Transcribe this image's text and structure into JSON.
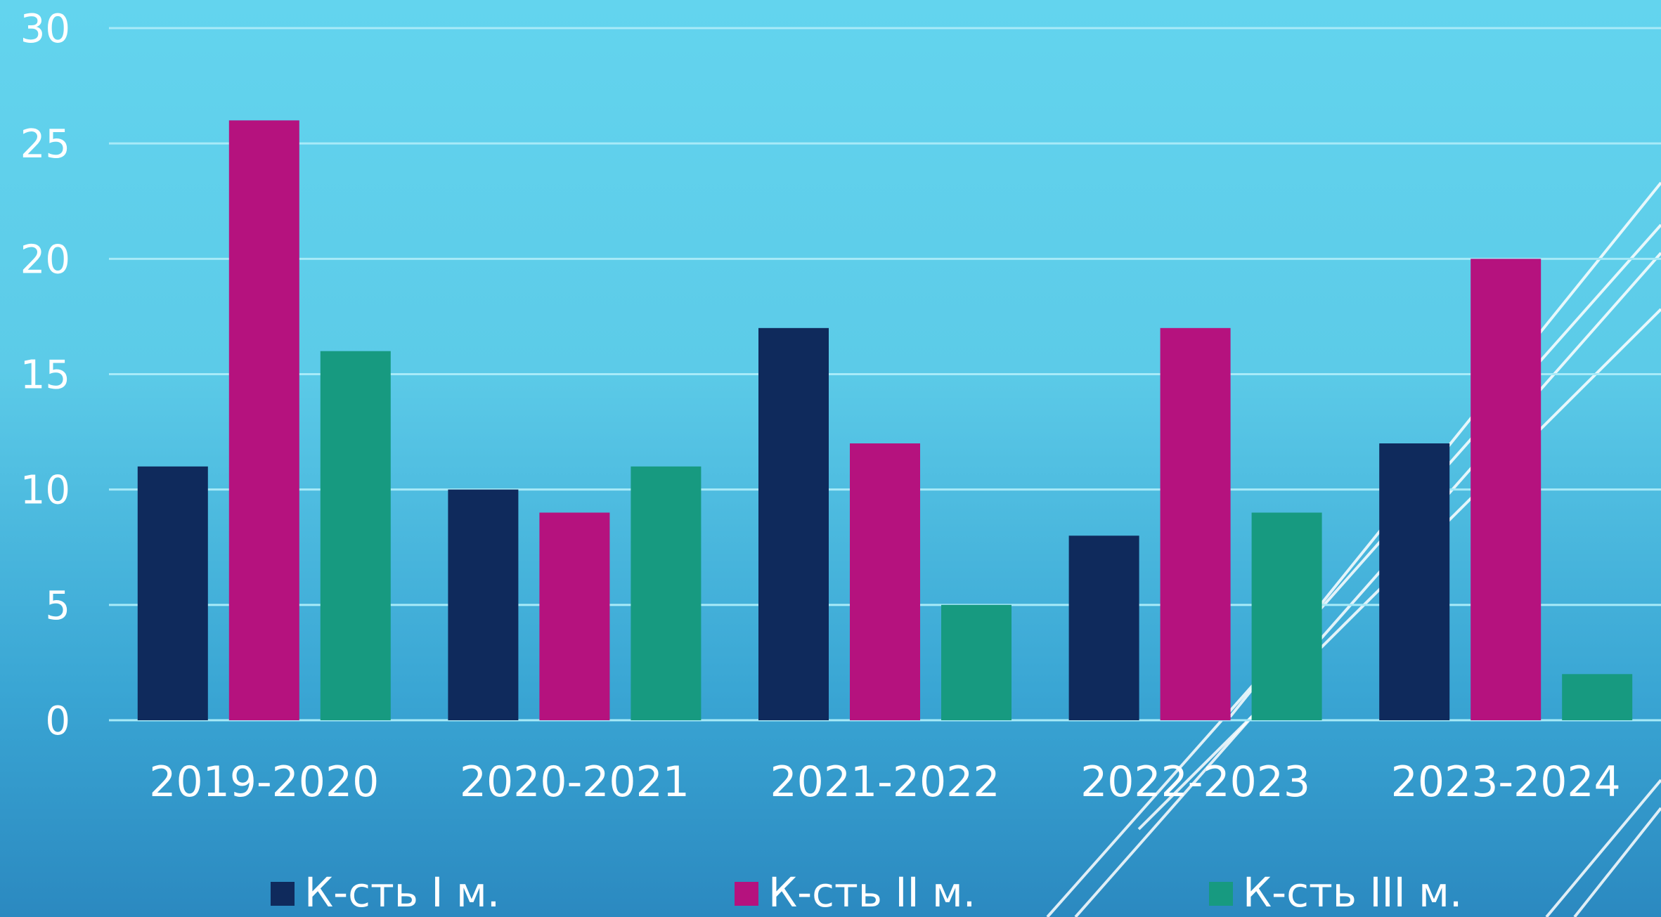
{
  "chart_data": {
    "type": "bar",
    "categories": [
      "2019-2020",
      "2020-2021",
      "2021-2022",
      "2022-2023",
      "2023-2024"
    ],
    "series": [
      {
        "name": "К-сть І м.",
        "values": [
          11,
          10,
          17,
          8,
          12
        ],
        "color": "#0f2a5c"
      },
      {
        "name": "К-сть ІІ м.",
        "values": [
          26,
          9,
          12,
          17,
          20
        ],
        "color": "#b5127e"
      },
      {
        "name": "К-сть ІІІ м.",
        "values": [
          16,
          11,
          5,
          9,
          2
        ],
        "color": "#179a80"
      }
    ],
    "yticks": [
      "0",
      "5",
      "10",
      "15",
      "20",
      "25",
      "30"
    ],
    "ylim": [
      0,
      30
    ],
    "grid": true,
    "legend": "bottom"
  }
}
